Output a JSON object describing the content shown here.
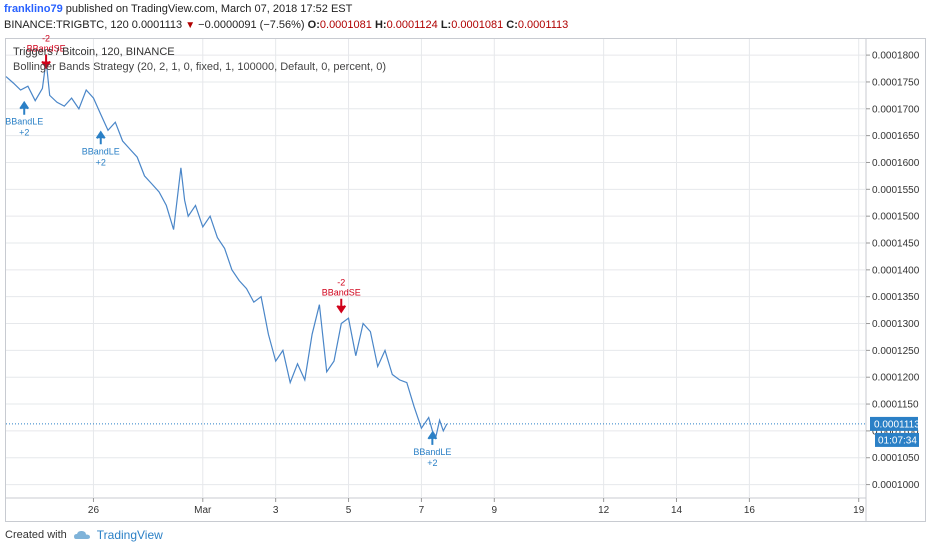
{
  "header": {
    "username": "franklino79",
    "published_text": "published on TradingView.com, March 07, 2018 17:52 EST",
    "symbol_line": "BINANCE:TRIGBTC, 120",
    "last": "0.0001113",
    "change": "−0.0000091 (−7.56%)",
    "o_label": "O:",
    "o_value": "0.0001081",
    "h_label": "H:",
    "h_value": "0.0001124",
    "l_label": "L:",
    "l_value": "0.0001081",
    "c_label": "C:",
    "c_value": "0.0001113"
  },
  "legend": {
    "title": "Triggers / Bitcoin, 120, BINANCE",
    "strategy": "Bollinger Bands Strategy (20, 2, 1, 0, fixed, 1, 100000, Default, 0, percent, 0)"
  },
  "footer": {
    "created_with": "Created with",
    "brand": "TradingView"
  },
  "price_tags": {
    "last_price": "0.0001113",
    "countdown": "01:07:34"
  },
  "colors": {
    "line": "#4a86c8",
    "long": "#2b80c6",
    "short": "#d0021b",
    "grid": "#e6e8eb",
    "last_line": "#2b80c6"
  },
  "chart_data": {
    "type": "line",
    "title": "Triggers / Bitcoin, 120, BINANCE",
    "ylim": [
      9.75e-05,
      0.000183
    ],
    "y_ticks": [
      "0.0001800",
      "0.0001750",
      "0.0001700",
      "0.0001650",
      "0.0001600",
      "0.0001550",
      "0.0001500",
      "0.0001450",
      "0.0001400",
      "0.0001350",
      "0.0001300",
      "0.0001250",
      "0.0001200",
      "0.0001150",
      "0.0001100",
      "0.0001050",
      "0.0001000"
    ],
    "x_ticks": [
      {
        "label": "26",
        "day": 26
      },
      {
        "label": "Mar",
        "day": 29
      },
      {
        "label": "3",
        "day": 31
      },
      {
        "label": "5",
        "day": 33
      },
      {
        "label": "7",
        "day": 35
      },
      {
        "label": "9",
        "day": 37
      },
      {
        "label": "12",
        "day": 40
      },
      {
        "label": "14",
        "day": 42
      },
      {
        "label": "16",
        "day": 44
      },
      {
        "label": "19",
        "day": 47
      }
    ],
    "xlim": [
      23.6,
      47.2
    ],
    "x_day": [
      23.6,
      23.8,
      24.0,
      24.2,
      24.4,
      24.6,
      24.7,
      24.8,
      25.0,
      25.2,
      25.4,
      25.6,
      25.8,
      26.0,
      26.2,
      26.4,
      26.6,
      26.8,
      27.0,
      27.2,
      27.4,
      27.6,
      27.8,
      28.0,
      28.2,
      28.4,
      28.5,
      28.6,
      28.8,
      29.0,
      29.2,
      29.4,
      29.6,
      29.8,
      30.0,
      30.2,
      30.4,
      30.6,
      30.8,
      31.0,
      31.2,
      31.4,
      31.6,
      31.8,
      32.0,
      32.2,
      32.4,
      32.6,
      32.8,
      33.0,
      33.2,
      33.4,
      33.6,
      33.8,
      34.0,
      34.2,
      34.4,
      34.6,
      34.8,
      35.0,
      35.2,
      35.3,
      35.4,
      35.5,
      35.6,
      35.7
    ],
    "y": [
      0.000176,
      0.0001748,
      0.0001735,
      0.0001742,
      0.0001715,
      0.0001738,
      0.000179,
      0.0001725,
      0.0001712,
      0.0001705,
      0.000172,
      0.00017,
      0.0001735,
      0.000172,
      0.000169,
      0.000166,
      0.0001675,
      0.000164,
      0.0001625,
      0.000161,
      0.0001575,
      0.000156,
      0.0001545,
      0.000152,
      0.0001475,
      0.000159,
      0.000153,
      0.00015,
      0.000152,
      0.000148,
      0.00015,
      0.000146,
      0.000144,
      0.00014,
      0.000138,
      0.0001365,
      0.000134,
      0.000135,
      0.000128,
      0.000123,
      0.000125,
      0.000119,
      0.0001225,
      0.0001195,
      0.000128,
      0.0001335,
      0.000121,
      0.000123,
      0.00013,
      0.000131,
      0.000124,
      0.00013,
      0.0001285,
      0.000122,
      0.000125,
      0.0001205,
      0.0001195,
      0.000119,
      0.0001145,
      0.0001105,
      0.0001125,
      0.00011,
      0.000109,
      0.000112,
      0.00011,
      0.0001113
    ],
    "last_value": 0.0001113,
    "signals": [
      {
        "type": "long",
        "label": "BBandLE",
        "qty": "+2",
        "day": 24.1,
        "price": 0.0001715
      },
      {
        "type": "short",
        "label": "BBandSE",
        "qty": "-2",
        "day": 24.7,
        "price": 0.000179
      },
      {
        "type": "long",
        "label": "BBandLE",
        "qty": "+2",
        "day": 26.2,
        "price": 0.000166
      },
      {
        "type": "short",
        "label": "BBandSE",
        "qty": "-2",
        "day": 32.8,
        "price": 0.0001335
      },
      {
        "type": "long",
        "label": "BBandLE",
        "qty": "+2",
        "day": 35.3,
        "price": 0.00011
      }
    ]
  }
}
